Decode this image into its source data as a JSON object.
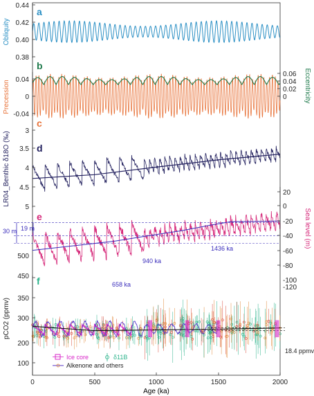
{
  "colors": {
    "obliquity": "#2a8fc4",
    "precession": "#e8743b",
    "eccentricity": "#1f7a4c",
    "benthic": "#22205e",
    "sealevel": "#d6297a",
    "sealevel_trend": "#3a2dbb",
    "ice_core": "#d826c8",
    "boron": "#29b38a",
    "alkenone": "#5a3acb",
    "orange_pts": "#e0883a",
    "red_pts": "#d9493a"
  },
  "chart_data": [
    {
      "type": "line",
      "panel": "a",
      "ylabel": "Obliquity",
      "yticks": [
        "0.44",
        "0.42",
        "0.40",
        "0.38"
      ],
      "ylim": [
        0.375,
        0.44
      ],
      "xlim": [
        0,
        2000
      ],
      "series": [
        {
          "shape": "sinusoid",
          "mean": 0.409,
          "amplitude": 0.0125,
          "period_ka": 41
        }
      ]
    },
    {
      "type": "line",
      "panel": "b",
      "ylabel_left": "Precession",
      "ylabel_right": "Eccentricity",
      "yticks_left": [
        "0.04",
        "0",
        "-0.04"
      ],
      "yticks_right": [
        "0.06",
        "0.04",
        "0.02",
        "0"
      ],
      "ylim_left": [
        -0.05,
        0.045
      ],
      "xlim": [
        0,
        2000
      ],
      "series": [
        {
          "name": "precession",
          "shape": "modulated sinusoid",
          "period_ka": 23
        },
        {
          "name": "eccentricity",
          "shape": "envelope",
          "period_ka": 100
        }
      ]
    },
    {
      "type": "line",
      "panel": "d",
      "ylabel": "LR04_Benthic δ18O (‰)",
      "yticks": [
        "3",
        "3.5",
        "4",
        "4.5",
        "5"
      ],
      "ylim": [
        3,
        5
      ],
      "y_inverted": true,
      "xlim": [
        0,
        2000
      ],
      "trend": {
        "x": [
          0,
          500,
          1000,
          1500,
          2000
        ],
        "y": [
          4.27,
          4.17,
          3.97,
          3.78,
          3.63
        ]
      }
    },
    {
      "type": "line",
      "panel": "e",
      "ylabel": "Sea level (m)",
      "yticks": [
        "20",
        "0",
        "-20",
        "-40",
        "-60",
        "-80",
        "-100",
        "-120"
      ],
      "ylim": [
        -125,
        25
      ],
      "xlim": [
        0,
        2000
      ],
      "trend": {
        "x": [
          0,
          300,
          658,
          940,
          1200,
          1436,
          1600,
          2000
        ],
        "y": [
          -64,
          -58,
          -51,
          -43,
          -36,
          -28,
          -23,
          -22
        ]
      },
      "annotations": [
        {
          "text": "19 m",
          "y_from": -24,
          "y_to": -43
        },
        {
          "text": "30 m",
          "y_from": -24,
          "y_to": -54
        },
        {
          "text": "658 ka",
          "x": 658
        },
        {
          "text": "940 ka",
          "x": 940
        },
        {
          "text": "1436 ka",
          "x": 1436
        }
      ]
    },
    {
      "type": "scatter",
      "panel": "f",
      "ylabel": "pCO2 (ppmv)",
      "yticks": [
        "100",
        "150",
        "200",
        "250",
        "300",
        "350",
        "400",
        "450",
        "500"
      ],
      "ylim": [
        80,
        520
      ],
      "xlabel": "Age (ka)",
      "xticks": [
        "0",
        "500",
        "1000",
        "1500",
        "2000"
      ],
      "xlim": [
        0,
        2000
      ],
      "legend": [
        "Ice core",
        "δ11B",
        "Alkenone and others"
      ],
      "legend_position": "bottom-left",
      "trend": {
        "x": [
          0,
          500,
          1000,
          1500,
          2000
        ],
        "y": [
          250,
          232,
          235,
          238,
          243
        ]
      },
      "annotation": "18.4 ppmv"
    }
  ]
}
